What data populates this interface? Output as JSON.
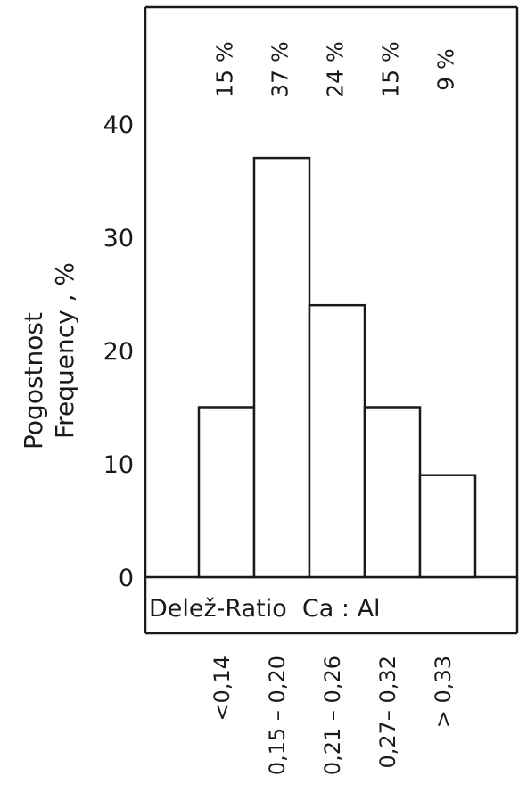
{
  "chart_data": {
    "type": "bar",
    "title": "",
    "xlabel": "Delež-Ratio  Ca : Al",
    "ylabel_lines": [
      "Pogostnost",
      "Frequency ,  %"
    ],
    "ylim": [
      0,
      48
    ],
    "yticks": [
      0,
      10,
      20,
      30,
      40
    ],
    "ytick_labels": [
      "0",
      "10",
      "20",
      "30",
      "40"
    ],
    "categories": [
      "<0,14",
      "0,15 – 0,20",
      "0,21 – 0,26",
      "0,27– 0,32",
      "> 0,33"
    ],
    "values": [
      15,
      37,
      24,
      15,
      9
    ],
    "data_labels": [
      "15 %",
      "37 %",
      "24 %",
      "15 %",
      "9 %"
    ],
    "grid": false,
    "colors": {
      "ink": "#1a1a1a",
      "bar_fill": "#ffffff"
    }
  }
}
